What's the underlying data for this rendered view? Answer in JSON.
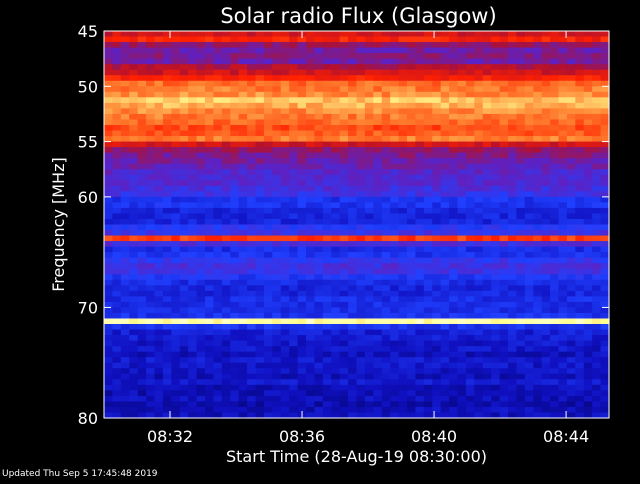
{
  "chart_data": {
    "type": "heatmap",
    "title": "Solar radio Flux (Glasgow)",
    "xlabel": "Start Time (28-Aug-19 08:30:00)",
    "ylabel": "Frequency [MHz]",
    "x_unit": "minutes after 08:30:00",
    "xlim": [
      0,
      15.3
    ],
    "ylim": [
      45,
      80
    ],
    "y_inverted": true,
    "x_ticks": [
      {
        "value": 2,
        "label": "08:32"
      },
      {
        "value": 6,
        "label": "08:36"
      },
      {
        "value": 10,
        "label": "08:40"
      },
      {
        "value": 14,
        "label": "08:44"
      }
    ],
    "y_ticks": [
      {
        "value": 45,
        "label": "45"
      },
      {
        "value": 50,
        "label": "50"
      },
      {
        "value": 55,
        "label": "55"
      },
      {
        "value": 60,
        "label": "60"
      },
      {
        "value": 70,
        "label": "70"
      },
      {
        "value": 80,
        "label": "80"
      }
    ],
    "colormap": [
      "#000060",
      "#1010c0",
      "#2040ff",
      "#6020c0",
      "#b01030",
      "#ff2000",
      "#ff8030",
      "#ffff90",
      "#ffffff"
    ],
    "frequency_bands_mhz": [
      45.0,
      45.5,
      46.0,
      46.5,
      47.0,
      47.5,
      48.0,
      48.5,
      49.0,
      49.5,
      50.0,
      50.5,
      51.0,
      51.5,
      52.0,
      52.5,
      53.0,
      53.5,
      54.0,
      54.5,
      55.0,
      55.5,
      56.0,
      56.5,
      57.0,
      57.5,
      58.0,
      58.5,
      59.0,
      59.5,
      60.0,
      60.5,
      61.0,
      61.5,
      62.0,
      62.5,
      63.0,
      63.5,
      64.0,
      64.5,
      65.0,
      65.5,
      66.0,
      66.5,
      67.0,
      67.5,
      68.0,
      68.5,
      69.0,
      69.5,
      70.0,
      70.5,
      71.0,
      71.5,
      72.0,
      72.5,
      73.0,
      73.5,
      74.0,
      74.5,
      75.0,
      75.5,
      76.0,
      76.5,
      77.0,
      77.5,
      78.0,
      78.5,
      79.0,
      79.5
    ],
    "band_intensity": [
      0.55,
      0.62,
      0.45,
      0.4,
      0.42,
      0.4,
      0.5,
      0.55,
      0.62,
      0.72,
      0.74,
      0.76,
      0.82,
      0.8,
      0.76,
      0.74,
      0.72,
      0.68,
      0.7,
      0.74,
      0.55,
      0.45,
      0.42,
      0.4,
      0.38,
      0.35,
      0.34,
      0.34,
      0.32,
      0.3,
      0.22,
      0.22,
      0.18,
      0.18,
      0.18,
      0.26,
      0.3,
      0.66,
      0.32,
      0.2,
      0.22,
      0.28,
      0.32,
      0.3,
      0.24,
      0.2,
      0.18,
      0.18,
      0.2,
      0.2,
      0.2,
      0.22,
      0.9,
      0.22,
      0.16,
      0.16,
      0.14,
      0.14,
      0.12,
      0.15,
      0.14,
      0.14,
      0.12,
      0.15,
      0.12,
      0.11,
      0.12,
      0.1,
      0.12,
      0.12
    ]
  },
  "footer": {
    "text": "Updated Thu Sep  5 17:45:48 2019"
  }
}
